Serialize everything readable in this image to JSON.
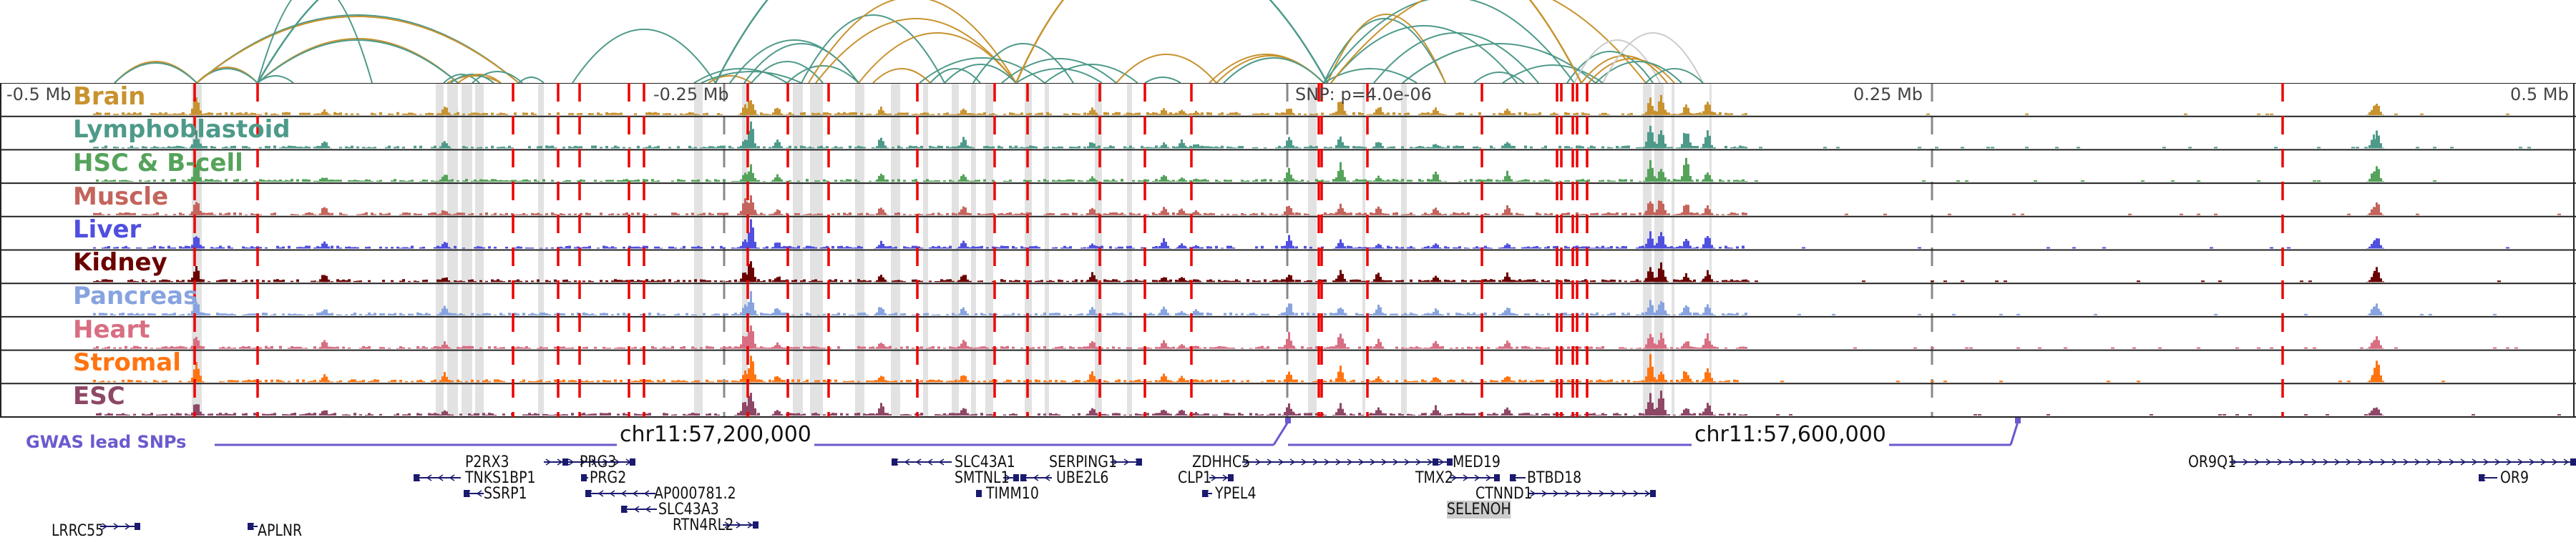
{
  "colors": {
    "arc_brain": "#c8922e",
    "arc_lympho": "#4e9a8a",
    "arc_grey": "#cccccc",
    "snp_line": "#6a5acd",
    "red_dash": "#ee0000",
    "grey_dash": "#888888",
    "highlight": "#e2e2e2",
    "gene": "#1a1a6e"
  },
  "axis": {
    "left_far": "-0.5 Mb",
    "left_near": "-0.25 Mb",
    "center": "SNP: p=4.0e-06",
    "right_near": "0.25 Mb",
    "right_far": "0.5 Mb"
  },
  "tracks": [
    {
      "label": "Brain",
      "color": "#c8922e"
    },
    {
      "label": "Lymphoblastoid",
      "color": "#4e9a8a"
    },
    {
      "label": "HSC & B-cell",
      "color": "#55a35a"
    },
    {
      "label": "Muscle",
      "color": "#c4645c"
    },
    {
      "label": "Liver",
      "color": "#4f4fe0"
    },
    {
      "label": "Kidney",
      "color": "#6b0000"
    },
    {
      "label": "Pancreas",
      "color": "#87a4e0"
    },
    {
      "label": "Heart",
      "color": "#d86e82"
    },
    {
      "label": "Stromal",
      "color": "#ff7410"
    },
    {
      "label": "ESC",
      "color": "#8e4766"
    }
  ],
  "gwas": {
    "label": "GWAS lead SNPs",
    "chr_left": "chr11:57,200,000",
    "chr_right": "chr11:57,600,000"
  },
  "genes": [
    {
      "name": "LRRC55",
      "strand": "+"
    },
    {
      "name": "APLNR",
      "strand": "-"
    },
    {
      "name": "P2RX3",
      "strand": "+"
    },
    {
      "name": "TNKS1BP1",
      "strand": "-"
    },
    {
      "name": "SSRP1",
      "strand": "-"
    },
    {
      "name": "PRG3",
      "strand": "-"
    },
    {
      "name": "PRG2",
      "strand": "-"
    },
    {
      "name": "AP000781.2",
      "strand": "-"
    },
    {
      "name": "SLC43A3",
      "strand": "-"
    },
    {
      "name": "RTN4RL2",
      "strand": "+"
    },
    {
      "name": "SLC43A1",
      "strand": "-"
    },
    {
      "name": "SMTNL1",
      "strand": "+"
    },
    {
      "name": "UBE2L6",
      "strand": "-"
    },
    {
      "name": "TIMM10",
      "strand": "-"
    },
    {
      "name": "SERPING1",
      "strand": "+"
    },
    {
      "name": "ZDHHC5",
      "strand": "+"
    },
    {
      "name": "CLP1",
      "strand": "+"
    },
    {
      "name": "YPEL4",
      "strand": "-"
    },
    {
      "name": "MED19",
      "strand": "-"
    },
    {
      "name": "TMX2",
      "strand": "+"
    },
    {
      "name": "BTBD18",
      "strand": "-"
    },
    {
      "name": "CTNND1",
      "strand": "+"
    },
    {
      "name": "SELENOH",
      "strand": "+",
      "highlighted": true
    },
    {
      "name": "OR9Q1",
      "strand": "+"
    },
    {
      "name": "OR9",
      "strand": "-"
    }
  ]
}
